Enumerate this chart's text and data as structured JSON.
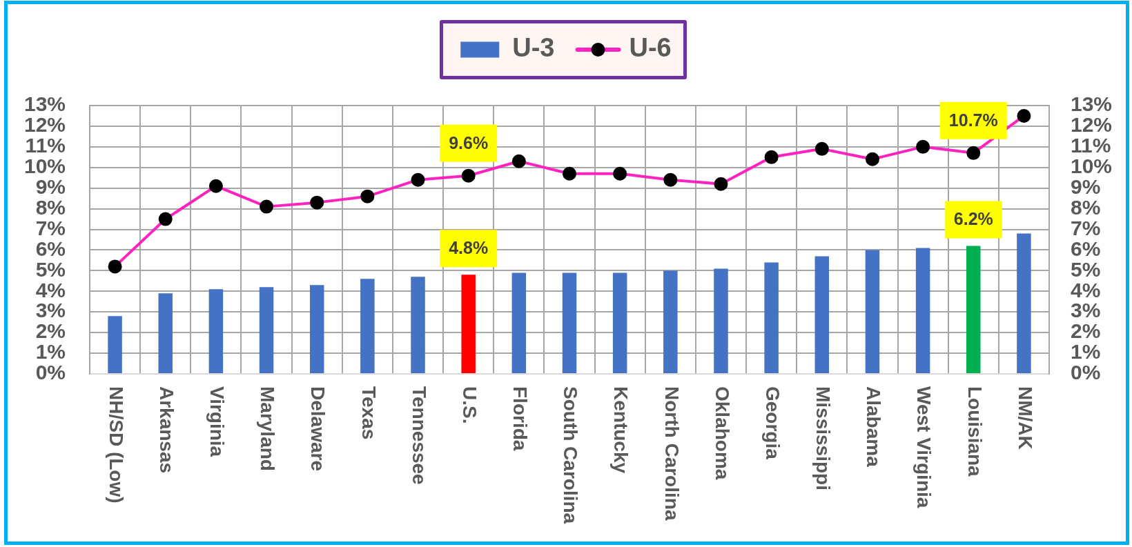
{
  "chart_data": {
    "type": "bar",
    "categories": [
      "NH/SD (Low)",
      "Arkansas",
      "Virginia",
      "Maryland",
      "Delaware",
      "Texas",
      "Tennessee",
      "U.S.",
      "Florida",
      "South Carolina",
      "Kentucky",
      "North Carolina",
      "Oklahoma",
      "Georgia",
      "Mississippi",
      "Alabama",
      "West Virginia",
      "Louisiana",
      "NM/AK"
    ],
    "series": [
      {
        "name": "U-3",
        "color": "#4472c4",
        "colors": [
          "#4472c4",
          "#4472c4",
          "#4472c4",
          "#4472c4",
          "#4472c4",
          "#4472c4",
          "#4472c4",
          "#ff0000",
          "#4472c4",
          "#4472c4",
          "#4472c4",
          "#4472c4",
          "#4472c4",
          "#4472c4",
          "#4472c4",
          "#4472c4",
          "#4472c4",
          "#00b050",
          "#4472c4"
        ],
        "values": [
          2.8,
          3.9,
          4.1,
          4.2,
          4.3,
          4.6,
          4.7,
          4.8,
          4.9,
          4.9,
          4.9,
          5.0,
          5.1,
          5.4,
          5.7,
          6.0,
          6.1,
          6.2,
          6.8
        ],
        "value_labels": [
          null,
          null,
          null,
          null,
          null,
          null,
          null,
          "4.8%",
          null,
          null,
          null,
          null,
          null,
          null,
          null,
          null,
          null,
          "6.2%",
          null
        ]
      },
      {
        "name": "U-6",
        "type": "line",
        "color": "#ff22c0",
        "colors": [
          "#000000",
          "#000000",
          "#000000",
          "#000000",
          "#000000",
          "#000000",
          "#000000",
          "#000000",
          "#000000",
          "#000000",
          "#000000",
          "#000000",
          "#000000",
          "#000000",
          "#000000",
          "#000000",
          "#000000",
          "#000000",
          "#000000"
        ],
        "values": [
          5.2,
          7.5,
          9.1,
          8.1,
          8.3,
          8.6,
          9.4,
          9.6,
          10.3,
          9.7,
          9.7,
          9.4,
          9.2,
          10.5,
          10.9,
          10.4,
          11.0,
          10.7,
          12.5
        ],
        "value_labels": [
          null,
          null,
          null,
          null,
          null,
          null,
          null,
          "9.6%",
          null,
          null,
          null,
          null,
          null,
          null,
          null,
          null,
          null,
          "10.7%",
          null
        ]
      }
    ],
    "ylim": [
      0,
      13
    ],
    "yticks": [
      {
        "value": 0,
        "label": "0%"
      },
      {
        "value": 1,
        "label": "1%"
      },
      {
        "value": 2,
        "label": "2%"
      },
      {
        "value": 3,
        "label": "3%"
      },
      {
        "value": 4,
        "label": "4%"
      },
      {
        "value": 5,
        "label": "5%"
      },
      {
        "value": 6,
        "label": "6%"
      },
      {
        "value": 7,
        "label": "7%"
      },
      {
        "value": 8,
        "label": "8%"
      },
      {
        "value": 9,
        "label": "9%"
      },
      {
        "value": 10,
        "label": "10%"
      },
      {
        "value": 11,
        "label": "11%"
      },
      {
        "value": 12,
        "label": "12%"
      },
      {
        "value": 13,
        "label": "13%"
      }
    ],
    "y2lim": [
      0,
      13
    ],
    "y2ticks": [
      {
        "value": 0,
        "label": "0%"
      },
      {
        "value": 1,
        "label": "1%"
      },
      {
        "value": 2,
        "label": "2%"
      },
      {
        "value": 3,
        "label": "3%"
      },
      {
        "value": 4,
        "label": "4%"
      },
      {
        "value": 5,
        "label": "5%"
      },
      {
        "value": 6,
        "label": "6%"
      },
      {
        "value": 7,
        "label": "7%"
      },
      {
        "value": 8,
        "label": "8%"
      },
      {
        "value": 9,
        "label": "9%"
      },
      {
        "value": 10,
        "label": "10%"
      },
      {
        "value": 11,
        "label": "11%"
      },
      {
        "value": 12,
        "label": "12%"
      },
      {
        "value": 13,
        "label": "13%"
      }
    ],
    "grid": true,
    "legend": "top",
    "marker": "circle"
  }
}
